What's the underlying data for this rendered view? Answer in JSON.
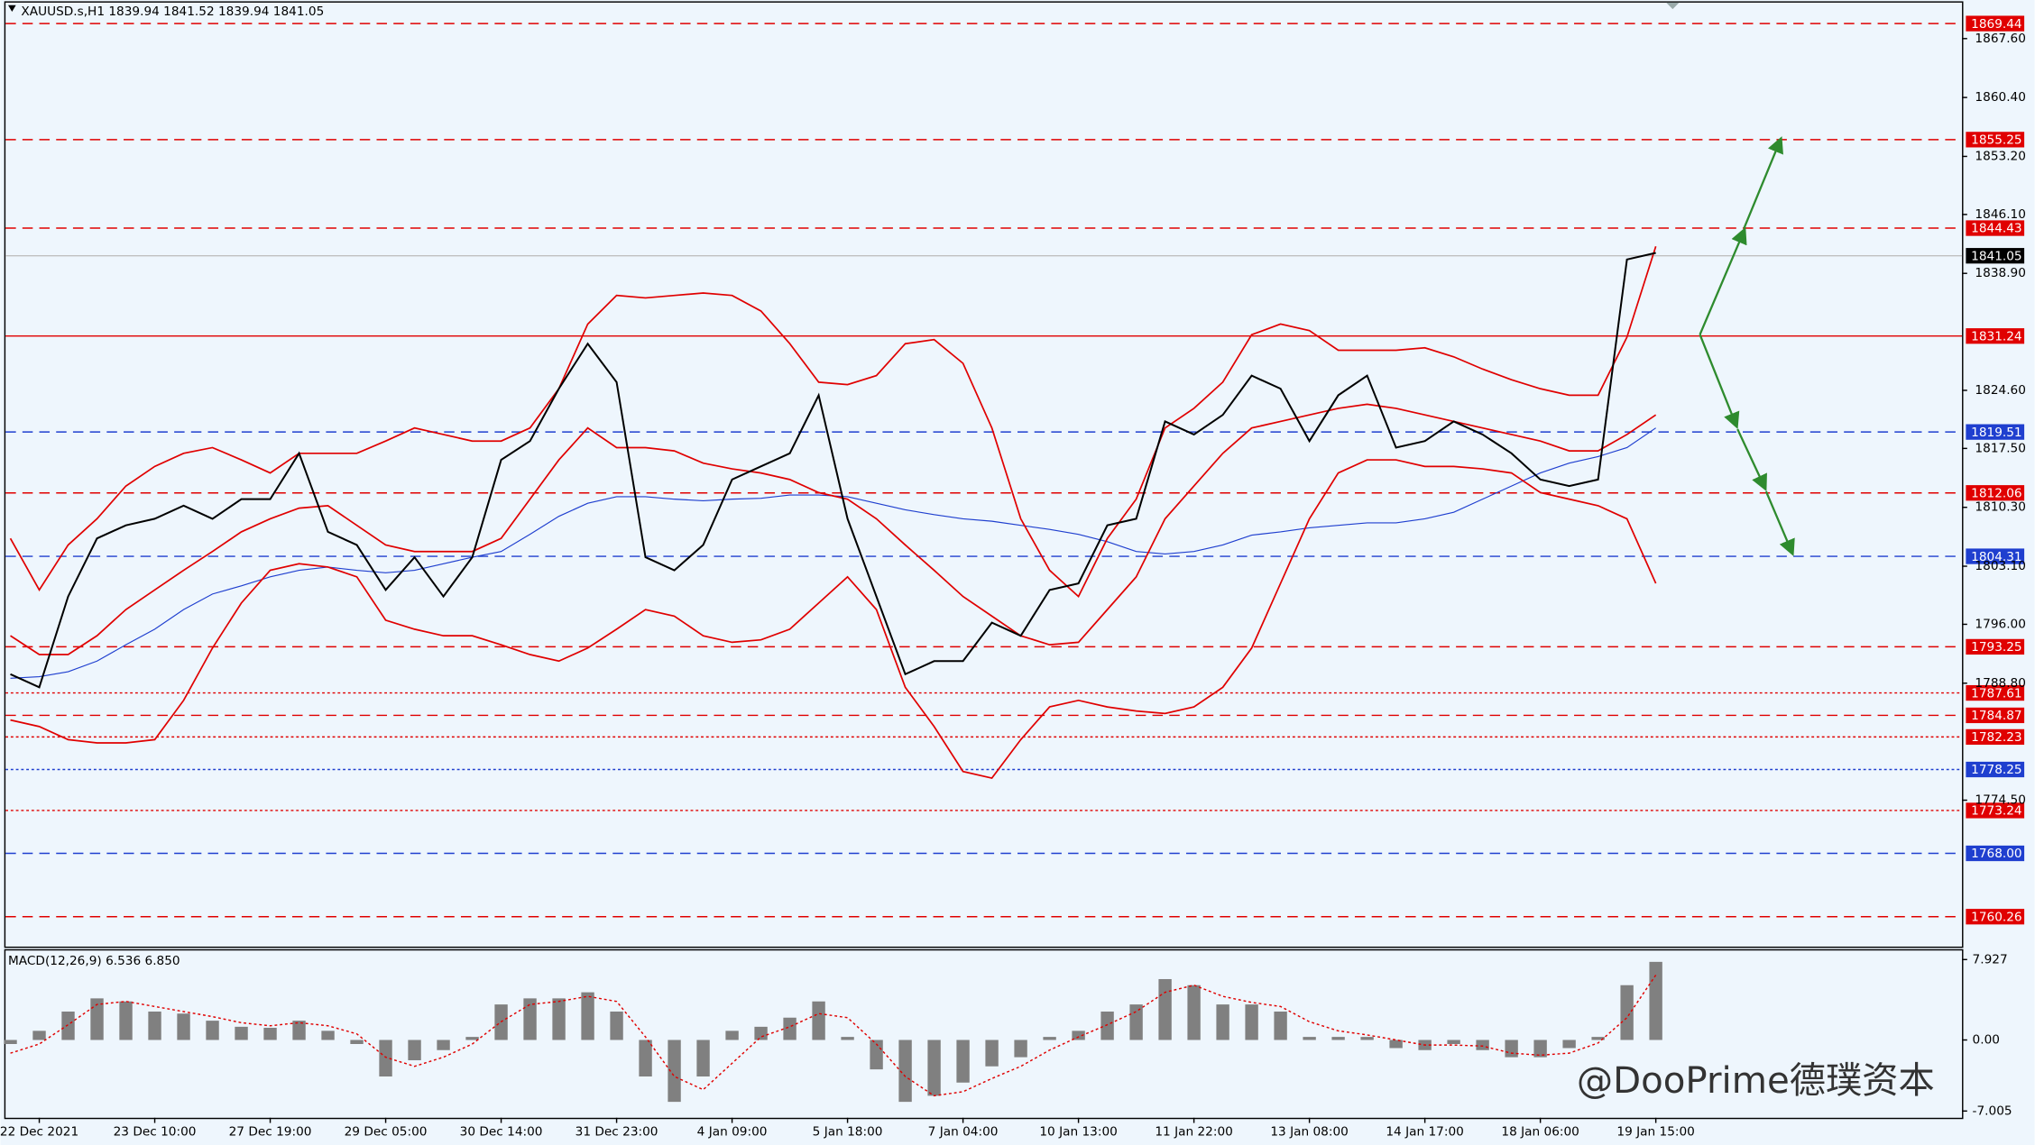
{
  "header": "XAUUSD.s,H1  1839.94 1841.52 1839.94 1841.05",
  "watermark": "@DooPrime德璞资本",
  "chart_data": [
    {
      "type": "line",
      "categories": [
        null,
        "22 Dec 2021",
        null,
        null,
        null,
        "23 Dec 10:00",
        null,
        null,
        null,
        "27 Dec 19:00",
        null,
        null,
        null,
        "29 Dec 05:00",
        null,
        null,
        null,
        "30 Dec 14:00",
        null,
        null,
        null,
        "31 Dec 23:00",
        null,
        null,
        null,
        "4 Jan 09:00",
        null,
        null,
        null,
        "5 Jan 18:00",
        null,
        null,
        null,
        "7 Jan 04:00",
        null,
        null,
        null,
        "10 Jan 13:00",
        null,
        null,
        null,
        "11 Jan 22:00",
        null,
        null,
        null,
        "13 Jan 08:00",
        null,
        null,
        null,
        "14 Jan 17:00",
        null,
        null,
        null,
        "18 Jan 06:00",
        null,
        null,
        null,
        "19 Jan 15:00"
      ],
      "ylim": [
        1756.6,
        1872.0
      ],
      "yticks": [
        {
          "value": 1867.6,
          "label": "1867.60"
        },
        {
          "value": 1860.4,
          "label": "1860.40"
        },
        {
          "value": 1853.2,
          "label": "1853.20"
        },
        {
          "value": 1846.1,
          "label": "1846.10"
        },
        {
          "value": 1838.9,
          "label": "1838.90"
        },
        {
          "value": 1824.6,
          "label": "1824.60"
        },
        {
          "value": 1817.5,
          "label": "1817.50"
        },
        {
          "value": 1810.3,
          "label": "1810.30"
        },
        {
          "value": 1803.1,
          "label": "1803.10"
        },
        {
          "value": 1796.0,
          "label": "1796.00"
        },
        {
          "value": 1788.8,
          "label": "1788.80"
        },
        {
          "value": 1774.5,
          "label": "1774.50"
        }
      ],
      "grid": false,
      "series": [
        {
          "color": "#1f3fcf",
          "width": 0.8,
          "values": [
            1789.4,
            1789.6,
            1790.2,
            1791.5,
            1793.5,
            1795.4,
            1797.8,
            1799.7,
            1800.7,
            1801.8,
            1802.6,
            1803.0,
            1802.6,
            1802.3,
            1802.6,
            1803.4,
            1804.2,
            1804.9,
            1807.0,
            1809.2,
            1810.8,
            1811.6,
            1811.6,
            1811.3,
            1811.1,
            1811.3,
            1811.4,
            1811.8,
            1811.8,
            1811.6,
            1810.8,
            1810.0,
            1809.4,
            1808.9,
            1808.6,
            1808.1,
            1807.6,
            1807.0,
            1806.1,
            1804.9,
            1804.6,
            1804.9,
            1805.7,
            1806.9,
            1807.3,
            1807.8,
            1808.1,
            1808.4,
            1808.4,
            1808.9,
            1809.7,
            1811.3,
            1812.9,
            1814.5,
            1815.7,
            1816.5,
            1817.6,
            1820.0
          ]
        },
        {
          "color": "#e00000",
          "width": 1.2,
          "values": [
            1806.5,
            1800.2,
            1805.7,
            1808.9,
            1812.9,
            1815.3,
            1816.9,
            1817.6,
            1816.1,
            1814.5,
            1816.9,
            1816.9,
            1816.9,
            1818.4,
            1820.0,
            1819.2,
            1818.4,
            1818.4,
            1820.0,
            1824.8,
            1832.7,
            1836.2,
            1835.9,
            1836.2,
            1836.5,
            1836.2,
            1834.3,
            1830.3,
            1825.6,
            1825.3,
            1826.4,
            1830.3,
            1830.8,
            1827.9,
            1820.0,
            1808.9,
            1802.6,
            1799.4,
            1806.5,
            1811.3,
            1820.0,
            1822.4,
            1825.6,
            1831.4,
            1832.7,
            1831.9,
            1829.5,
            1829.5,
            1829.5,
            1829.8,
            1828.7,
            1827.2,
            1825.9,
            1824.8,
            1824.0,
            1824.0,
            1831.1,
            1842.2
          ]
        },
        {
          "color": "#e00000",
          "width": 1.2,
          "values": [
            1794.6,
            1792.3,
            1792.3,
            1794.6,
            1797.8,
            1800.2,
            1802.6,
            1804.9,
            1807.3,
            1808.9,
            1810.2,
            1810.5,
            1808.1,
            1805.7,
            1804.9,
            1804.9,
            1804.9,
            1806.5,
            1811.3,
            1816.1,
            1820.0,
            1817.6,
            1817.6,
            1817.2,
            1815.7,
            1815.0,
            1814.5,
            1813.7,
            1812.1,
            1811.3,
            1808.9,
            1805.7,
            1802.6,
            1799.4,
            1797.0,
            1794.6,
            1793.5,
            1793.8,
            1797.8,
            1801.8,
            1808.9,
            1812.9,
            1816.9,
            1820.0,
            1820.8,
            1821.6,
            1822.4,
            1822.9,
            1822.4,
            1821.6,
            1820.8,
            1820.0,
            1819.2,
            1818.4,
            1817.2,
            1817.2,
            1819.2,
            1821.6
          ]
        },
        {
          "color": "#e00000",
          "width": 1.2,
          "values": [
            1784.3,
            1783.5,
            1781.9,
            1781.5,
            1781.5,
            1781.9,
            1786.7,
            1793.1,
            1798.6,
            1802.6,
            1803.4,
            1803.0,
            1801.8,
            1796.5,
            1795.4,
            1794.6,
            1794.6,
            1793.5,
            1792.3,
            1791.5,
            1793.1,
            1795.4,
            1797.8,
            1797.0,
            1794.6,
            1793.8,
            1794.1,
            1795.4,
            1798.6,
            1801.8,
            1797.8,
            1788.3,
            1783.5,
            1778.0,
            1777.2,
            1781.9,
            1785.9,
            1786.7,
            1785.9,
            1785.4,
            1785.1,
            1785.9,
            1788.3,
            1793.1,
            1801.0,
            1808.9,
            1814.5,
            1816.1,
            1816.1,
            1815.3,
            1815.3,
            1815.0,
            1814.5,
            1812.1,
            1811.3,
            1810.5,
            1808.9,
            1801.0
          ]
        },
        {
          "color": "#000000",
          "width": 1.4,
          "values": [
            1789.9,
            1788.3,
            1799.4,
            1806.5,
            1808.1,
            1808.9,
            1810.5,
            1808.9,
            1811.3,
            1811.3,
            1816.9,
            1807.3,
            1805.7,
            1800.2,
            1804.2,
            1799.4,
            1804.2,
            1816.1,
            1818.4,
            1824.8,
            1830.3,
            1825.6,
            1804.2,
            1802.6,
            1805.7,
            1813.7,
            1815.3,
            1816.9,
            1824.0,
            1808.9,
            1799.4,
            1789.9,
            1791.5,
            1791.5,
            1796.2,
            1794.6,
            1800.2,
            1801.0,
            1808.1,
            1808.9,
            1820.8,
            1819.2,
            1821.6,
            1826.4,
            1824.8,
            1818.4,
            1824.0,
            1826.4,
            1817.6,
            1818.4,
            1820.8,
            1819.2,
            1816.9,
            1813.7,
            1812.9,
            1813.7,
            1840.6,
            1841.4
          ]
        }
      ],
      "levels": [
        {
          "value": 1869.44,
          "color": "#e00000",
          "dash": "dashed"
        },
        {
          "value": 1855.25,
          "color": "#e00000",
          "dash": "dashed"
        },
        {
          "value": 1844.43,
          "color": "#e00000",
          "dash": "dashed"
        },
        {
          "value": 1841.05,
          "color": "#000000",
          "line_color": "#c0c0c0",
          "dash": "solid"
        },
        {
          "value": 1831.24,
          "color": "#e00000",
          "dash": "solid"
        },
        {
          "value": 1819.51,
          "color": "#1f3fcf",
          "dash": "dashed"
        },
        {
          "value": 1812.06,
          "color": "#e00000",
          "dash": "dashed"
        },
        {
          "value": 1804.31,
          "color": "#1f3fcf",
          "dash": "dashed"
        },
        {
          "value": 1793.25,
          "color": "#e00000",
          "dash": "dashed"
        },
        {
          "value": 1787.61,
          "color": "#e00000",
          "dash": "dotted"
        },
        {
          "value": 1784.87,
          "color": "#e00000",
          "dash": "dashed"
        },
        {
          "value": 1782.23,
          "color": "#e00000",
          "dash": "dotted"
        },
        {
          "value": 1778.25,
          "color": "#1f3fcf",
          "dash": "dotted"
        },
        {
          "value": 1773.24,
          "color": "#e00000",
          "dash": "dotted"
        },
        {
          "value": 1768,
          "label": "1768.00",
          "color": "#1f3fcf",
          "dash": "dashed"
        },
        {
          "value": 1760.26,
          "color": "#e00000",
          "dash": "dashed"
        }
      ]
    },
    {
      "type": "macd",
      "title": "MACD(12,26,9) 6.536 6.850",
      "ylim": [
        -7.67,
        8.82
      ],
      "yticks": [
        7.927,
        {
          "value": 0,
          "label": "0.00"
        },
        -7.005
      ],
      "series": [
        {
          "kind": "bar",
          "color": "#808080",
          "values": [
            -0.4,
            0.9,
            2.8,
            4.1,
            3.8,
            2.8,
            2.6,
            1.9,
            1.3,
            1.2,
            1.9,
            0.9,
            -0.4,
            -3.6,
            -2.0,
            -1.0,
            0.3,
            3.5,
            4.1,
            4.1,
            4.7,
            2.8,
            -3.6,
            -6.1,
            -3.6,
            0.9,
            1.3,
            2.2,
            3.8,
            0.3,
            -2.9,
            -6.1,
            -5.5,
            -4.2,
            -2.6,
            -1.7,
            0.3,
            0.9,
            2.8,
            3.5,
            6.0,
            5.4,
            3.5,
            3.5,
            2.8,
            0.3,
            0.3,
            0.3,
            -0.8,
            -1.0,
            -0.4,
            -1.0,
            -1.7,
            -1.7,
            -0.8,
            0.3,
            5.4,
            7.7
          ]
        },
        {
          "kind": "line",
          "color": "#e00000",
          "dash": "dotted",
          "values": [
            -1.3,
            -0.4,
            1.5,
            3.5,
            3.8,
            3.3,
            2.8,
            2.3,
            1.7,
            1.4,
            1.7,
            1.4,
            0.6,
            -1.7,
            -2.6,
            -1.7,
            -0.4,
            1.8,
            3.5,
            3.8,
            4.3,
            3.8,
            0.3,
            -3.6,
            -4.9,
            -2.3,
            0.3,
            1.3,
            2.6,
            2.2,
            -0.4,
            -3.6,
            -5.5,
            -5.1,
            -3.8,
            -2.6,
            -1.0,
            0.3,
            1.5,
            2.8,
            4.7,
            5.4,
            4.3,
            3.7,
            3.3,
            1.8,
            0.9,
            0.5,
            0,
            -0.5,
            -0.5,
            -0.6,
            -1.3,
            -1.5,
            -1.3,
            -0.3,
            2.2,
            6.4
          ]
        }
      ]
    }
  ]
}
